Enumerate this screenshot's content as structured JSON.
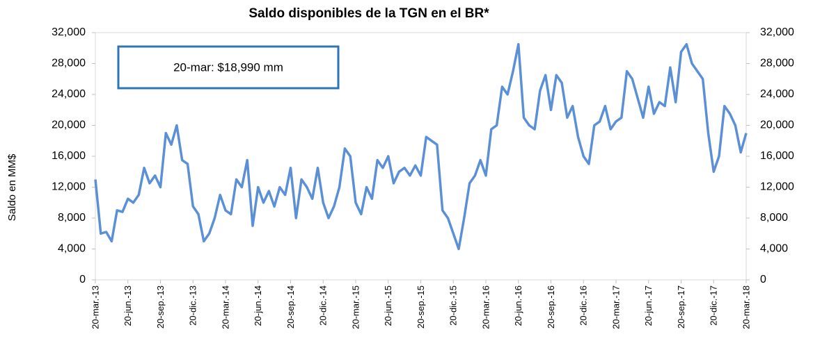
{
  "chart_data": {
    "type": "line",
    "title": "Saldo disponibles de la TGN en el BR*",
    "ylabel": "Saldo en MM$",
    "annotation": "20-mar: $18,990 mm",
    "color": "#5b8fd6",
    "categories": [
      "20-mar.-13",
      null,
      null,
      null,
      null,
      null,
      "20-jun.-13",
      null,
      null,
      null,
      null,
      null,
      "20-sep.-13",
      null,
      null,
      null,
      null,
      null,
      "20-dic.-13",
      null,
      null,
      null,
      null,
      null,
      "20-mar.-14",
      null,
      null,
      null,
      null,
      null,
      "20-jun.-14",
      null,
      null,
      null,
      null,
      null,
      "20-sep.-14",
      null,
      null,
      null,
      null,
      null,
      "20-dic.-14",
      null,
      null,
      null,
      null,
      null,
      "20-mar.-15",
      null,
      null,
      null,
      null,
      null,
      "20-jun.-15",
      null,
      null,
      null,
      null,
      null,
      "20-sep.-15",
      null,
      null,
      null,
      null,
      null,
      "20-dic.-15",
      null,
      null,
      null,
      null,
      null,
      "20-mar.-16",
      null,
      null,
      null,
      null,
      null,
      "20-jun.-16",
      null,
      null,
      null,
      null,
      null,
      "20-sep.-16",
      null,
      null,
      null,
      null,
      null,
      "20-dic.-16",
      null,
      null,
      null,
      null,
      null,
      "20-mar.-17",
      null,
      null,
      null,
      null,
      null,
      "20-jun.-17",
      null,
      null,
      null,
      null,
      null,
      "20-sep.-17",
      null,
      null,
      null,
      null,
      null,
      "20-dic.-17",
      null,
      null,
      null,
      null,
      null,
      "20-mar.-18"
    ],
    "values": [
      13000,
      6000,
      6200,
      5000,
      9000,
      8800,
      10500,
      10000,
      11000,
      14500,
      12500,
      13500,
      12000,
      19000,
      17500,
      20000,
      15500,
      15000,
      9500,
      8500,
      5000,
      6000,
      8000,
      11000,
      9000,
      8500,
      13000,
      12000,
      15500,
      7000,
      12000,
      10000,
      11500,
      9500,
      12000,
      11000,
      14500,
      8000,
      13000,
      12000,
      10500,
      14500,
      10000,
      8000,
      9500,
      12000,
      17000,
      16000,
      10000,
      8500,
      12000,
      10500,
      15500,
      14500,
      16000,
      12500,
      14000,
      14500,
      13500,
      14800,
      13500,
      18500,
      18000,
      17500,
      9000,
      8000,
      6000,
      4000,
      8000,
      12500,
      13500,
      15500,
      13500,
      19500,
      20000,
      25000,
      24000,
      27000,
      30500,
      21000,
      20000,
      19500,
      24500,
      26500,
      22000,
      26500,
      25500,
      21000,
      22500,
      18500,
      16000,
      15000,
      20000,
      20500,
      22500,
      19500,
      20500,
      21000,
      27000,
      26000,
      23500,
      21000,
      25000,
      21500,
      23000,
      22500,
      27500,
      23000,
      29500,
      30500,
      28000,
      27000,
      26000,
      19000,
      14000,
      16000,
      22500,
      21500,
      20000,
      16500,
      18990
    ],
    "ylim": [
      0,
      32000
    ],
    "yticks": [
      0,
      {
        "value": 4000,
        "label": "4,000"
      },
      {
        "value": 8000,
        "label": "8,000"
      },
      {
        "value": 12000,
        "label": "12,000"
      },
      {
        "value": 16000,
        "label": "16,000"
      },
      {
        "value": 20000,
        "label": "20,000"
      },
      {
        "value": 24000,
        "label": "24,000"
      },
      {
        "value": 28000,
        "label": "28,000"
      },
      {
        "value": 32000,
        "label": "32,000"
      }
    ],
    "y2lim": [
      0,
      32000
    ],
    "y2ticks": [
      0,
      {
        "value": 4000,
        "label": "4,000"
      },
      {
        "value": 8000,
        "label": "8,000"
      },
      {
        "value": 12000,
        "label": "12,000"
      },
      {
        "value": 16000,
        "label": "16,000"
      },
      {
        "value": 20000,
        "label": "20,000"
      },
      {
        "value": 24000,
        "label": "24,000"
      },
      {
        "value": 28000,
        "label": "28,000"
      },
      {
        "value": 32000,
        "label": "32,000"
      }
    ]
  }
}
